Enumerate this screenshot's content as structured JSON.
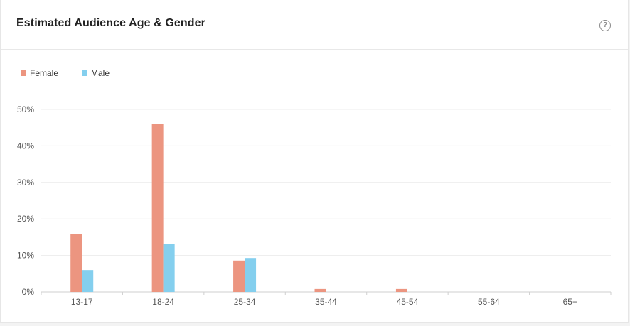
{
  "title": "Estimated Audience Age & Gender",
  "help_icon": "question-circle-icon",
  "help_glyph": "?",
  "colors": {
    "female": "#ec9580",
    "male": "#84cfee",
    "grid": "#ececec",
    "axis": "#cfcfcf"
  },
  "legend": [
    {
      "name": "Female",
      "color": "#ec9580"
    },
    {
      "name": "Male",
      "color": "#84cfee"
    }
  ],
  "chart_data": {
    "type": "bar",
    "categories": [
      "13-17",
      "18-24",
      "25-34",
      "35-44",
      "45-54",
      "55-64",
      "65+"
    ],
    "series": [
      {
        "name": "Female",
        "values": [
          15.8,
          46.1,
          8.6,
          0.8,
          0.8,
          0,
          0
        ]
      },
      {
        "name": "Male",
        "values": [
          6.0,
          13.2,
          9.3,
          0,
          0,
          0,
          0
        ]
      }
    ],
    "ylim": [
      0,
      50
    ],
    "yticks": [
      "0%",
      "10%",
      "20%",
      "30%",
      "40%",
      "50%"
    ],
    "ytick_values": [
      0,
      10,
      20,
      30,
      40,
      50
    ],
    "grid": true,
    "legend_position": "top-left"
  }
}
